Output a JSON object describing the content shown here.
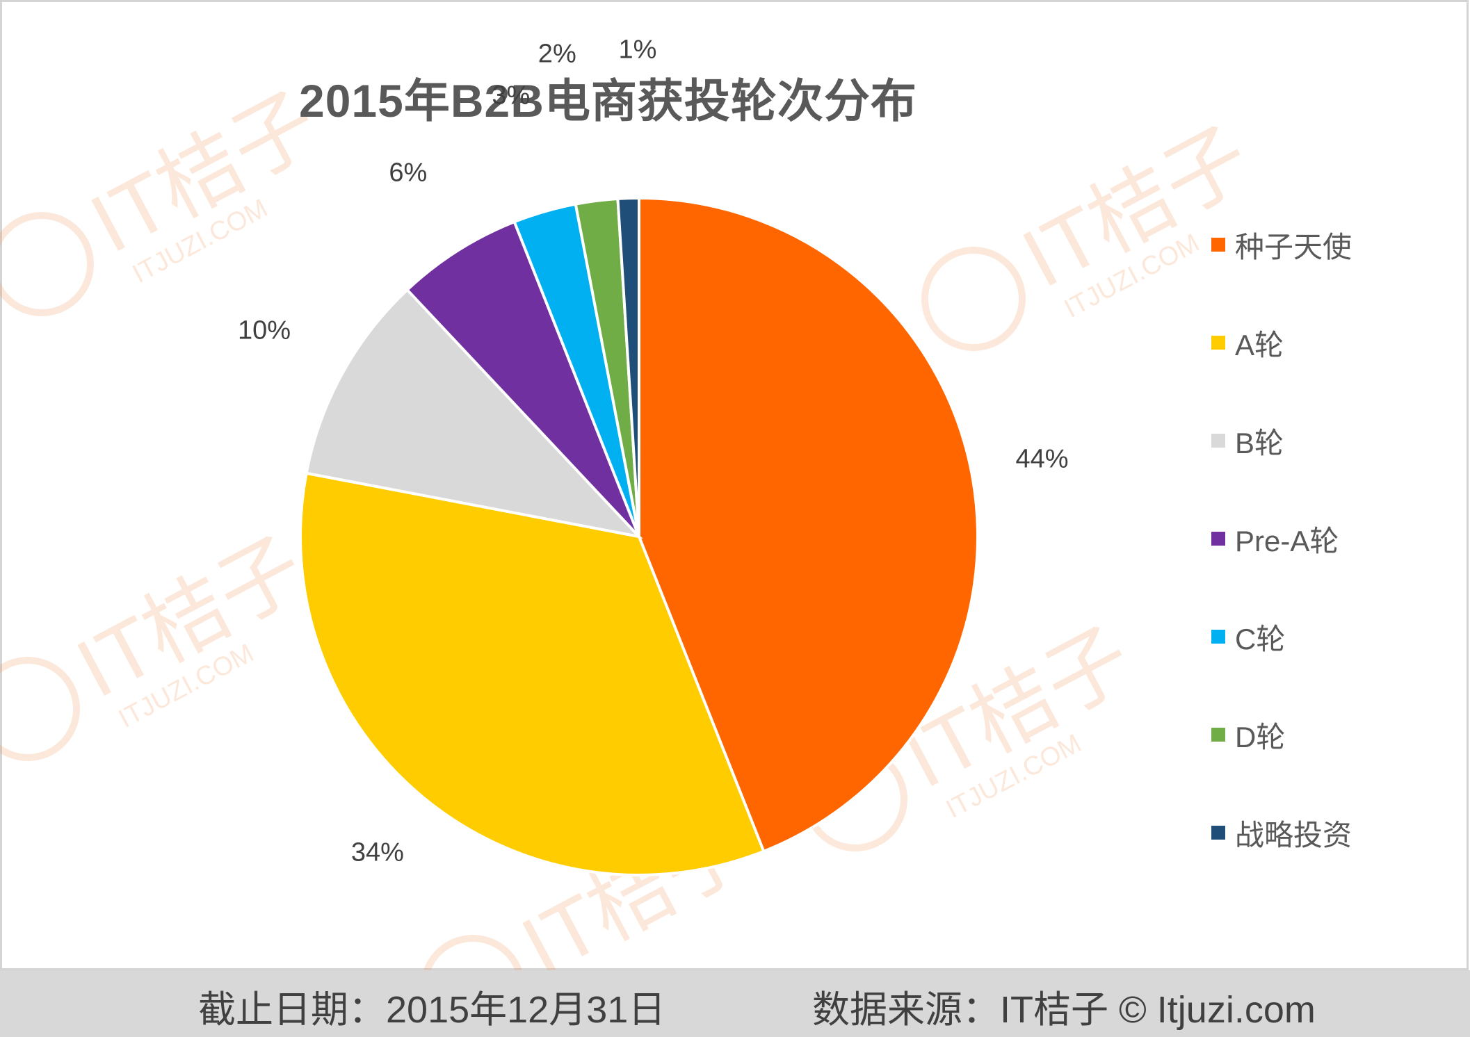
{
  "chart_data": {
    "type": "pie",
    "title": "2015年B2B电商获投轮次分布",
    "categories": [
      "种子天使",
      "A轮",
      "B轮",
      "Pre-A轮",
      "C轮",
      "D轮",
      "战略投资"
    ],
    "values": [
      44,
      34,
      10,
      6,
      3,
      2,
      1
    ],
    "labels": [
      "44%",
      "34%",
      "10%",
      "6%",
      "3%",
      "2%",
      "1%"
    ],
    "colors": [
      "#ff6600",
      "#ffcc00",
      "#d9d9d9",
      "#7030a0",
      "#00b0f0",
      "#70ad47",
      "#1f4e79"
    ],
    "legend": "right",
    "start_angle": "12 o'clock, clockwise"
  },
  "footer": {
    "date_text": "截止日期：2015年12月31日",
    "source_text": "数据来源：IT桔子 © Itjuzi.com"
  },
  "watermark": {
    "brand": "IT桔子",
    "domain": "ITJUZI.COM",
    "color": "#f9c9a8"
  }
}
